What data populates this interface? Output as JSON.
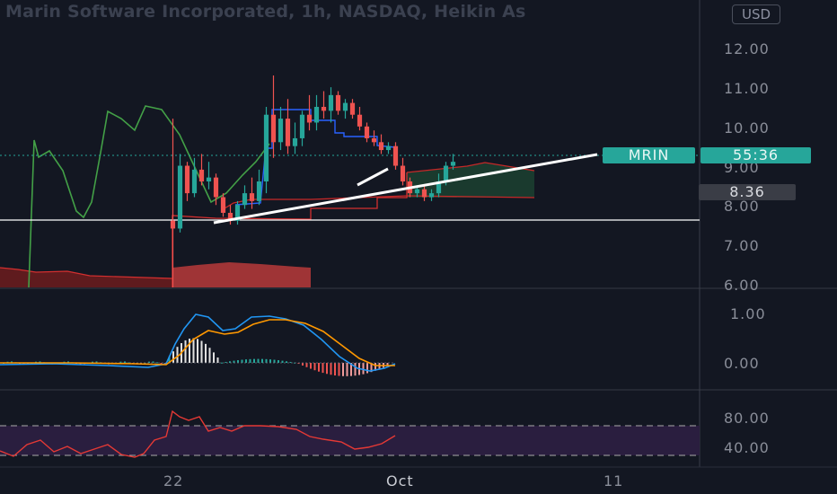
{
  "header": {
    "title": "Marin Software Incorporated, 1h, NASDAQ, Heikin As",
    "currency": "USD"
  },
  "price_tags": {
    "ticker": "MRIN",
    "countdown": "55:36",
    "close": "8.36"
  },
  "colors": {
    "background": "#131722",
    "up": "#26a69a",
    "down": "#ef5350",
    "green_line": "#43a047",
    "red_line": "#d32f2f",
    "blue_line": "#2962ff",
    "macd": "#2196f3",
    "signal": "#ff9800",
    "rsi": "#e53935",
    "rsi_band": "#2a1e3f"
  },
  "chart_data": [
    {
      "type": "candlestick",
      "panel": "price",
      "ylim": [
        6.0,
        12.5
      ],
      "y_ticks": [
        "12.00",
        "11.00",
        "10.00",
        "9.00",
        "8.00",
        "7.00",
        "6.00"
      ],
      "y_tick_values": [
        12,
        11,
        10,
        9,
        8,
        7,
        6
      ],
      "x_ticks": [
        "22",
        "Oct",
        "11"
      ],
      "x_tick_index": [
        22,
        70,
        98
      ],
      "candles": [
        [
          7.7,
          10.3,
          6.0,
          7.5
        ],
        [
          7.5,
          9.4,
          7.4,
          9.1
        ],
        [
          9.1,
          9.2,
          8.2,
          8.4
        ],
        [
          8.4,
          9.3,
          8.3,
          9.0
        ],
        [
          9.0,
          9.4,
          8.6,
          8.7
        ],
        [
          8.7,
          9.2,
          8.5,
          8.8
        ],
        [
          8.8,
          8.9,
          8.1,
          8.3
        ],
        [
          8.3,
          8.4,
          7.8,
          7.9
        ],
        [
          7.9,
          8.1,
          7.6,
          7.7
        ],
        [
          7.7,
          8.2,
          7.6,
          8.1
        ],
        [
          8.1,
          8.6,
          8.0,
          8.4
        ],
        [
          8.4,
          8.8,
          8.0,
          8.2
        ],
        [
          8.2,
          9.0,
          8.1,
          8.7
        ],
        [
          8.7,
          10.6,
          8.4,
          10.4
        ],
        [
          10.4,
          11.4,
          9.3,
          9.7
        ],
        [
          9.7,
          10.6,
          9.5,
          10.3
        ],
        [
          10.3,
          10.8,
          9.4,
          9.6
        ],
        [
          9.6,
          10.2,
          9.4,
          9.8
        ],
        [
          9.8,
          10.5,
          9.6,
          10.4
        ],
        [
          10.4,
          10.9,
          10.0,
          10.2
        ],
        [
          10.2,
          10.9,
          10.0,
          10.6
        ],
        [
          10.6,
          11.0,
          10.3,
          10.5
        ],
        [
          10.5,
          11.1,
          10.2,
          10.9
        ],
        [
          10.9,
          11.0,
          10.4,
          10.5
        ],
        [
          10.5,
          10.8,
          10.3,
          10.7
        ],
        [
          10.7,
          10.8,
          10.3,
          10.4
        ],
        [
          10.4,
          10.6,
          10.0,
          10.1
        ],
        [
          10.1,
          10.2,
          9.7,
          9.8
        ],
        [
          9.8,
          10.0,
          9.6,
          9.7
        ],
        [
          9.7,
          9.9,
          9.4,
          9.5
        ],
        [
          9.5,
          9.7,
          9.4,
          9.6
        ],
        [
          9.6,
          9.7,
          9.0,
          9.1
        ],
        [
          9.1,
          9.3,
          8.6,
          8.7
        ],
        [
          8.7,
          8.8,
          8.3,
          8.4
        ],
        [
          8.4,
          8.6,
          8.3,
          8.5
        ],
        [
          8.5,
          8.6,
          8.2,
          8.3
        ],
        [
          8.3,
          8.5,
          8.2,
          8.4
        ],
        [
          8.4,
          8.9,
          8.3,
          8.7
        ],
        [
          8.7,
          9.2,
          8.6,
          9.1
        ],
        [
          9.1,
          9.4,
          9.0,
          9.2
        ]
      ],
      "candle_start_index": 23
    }
  ]
}
